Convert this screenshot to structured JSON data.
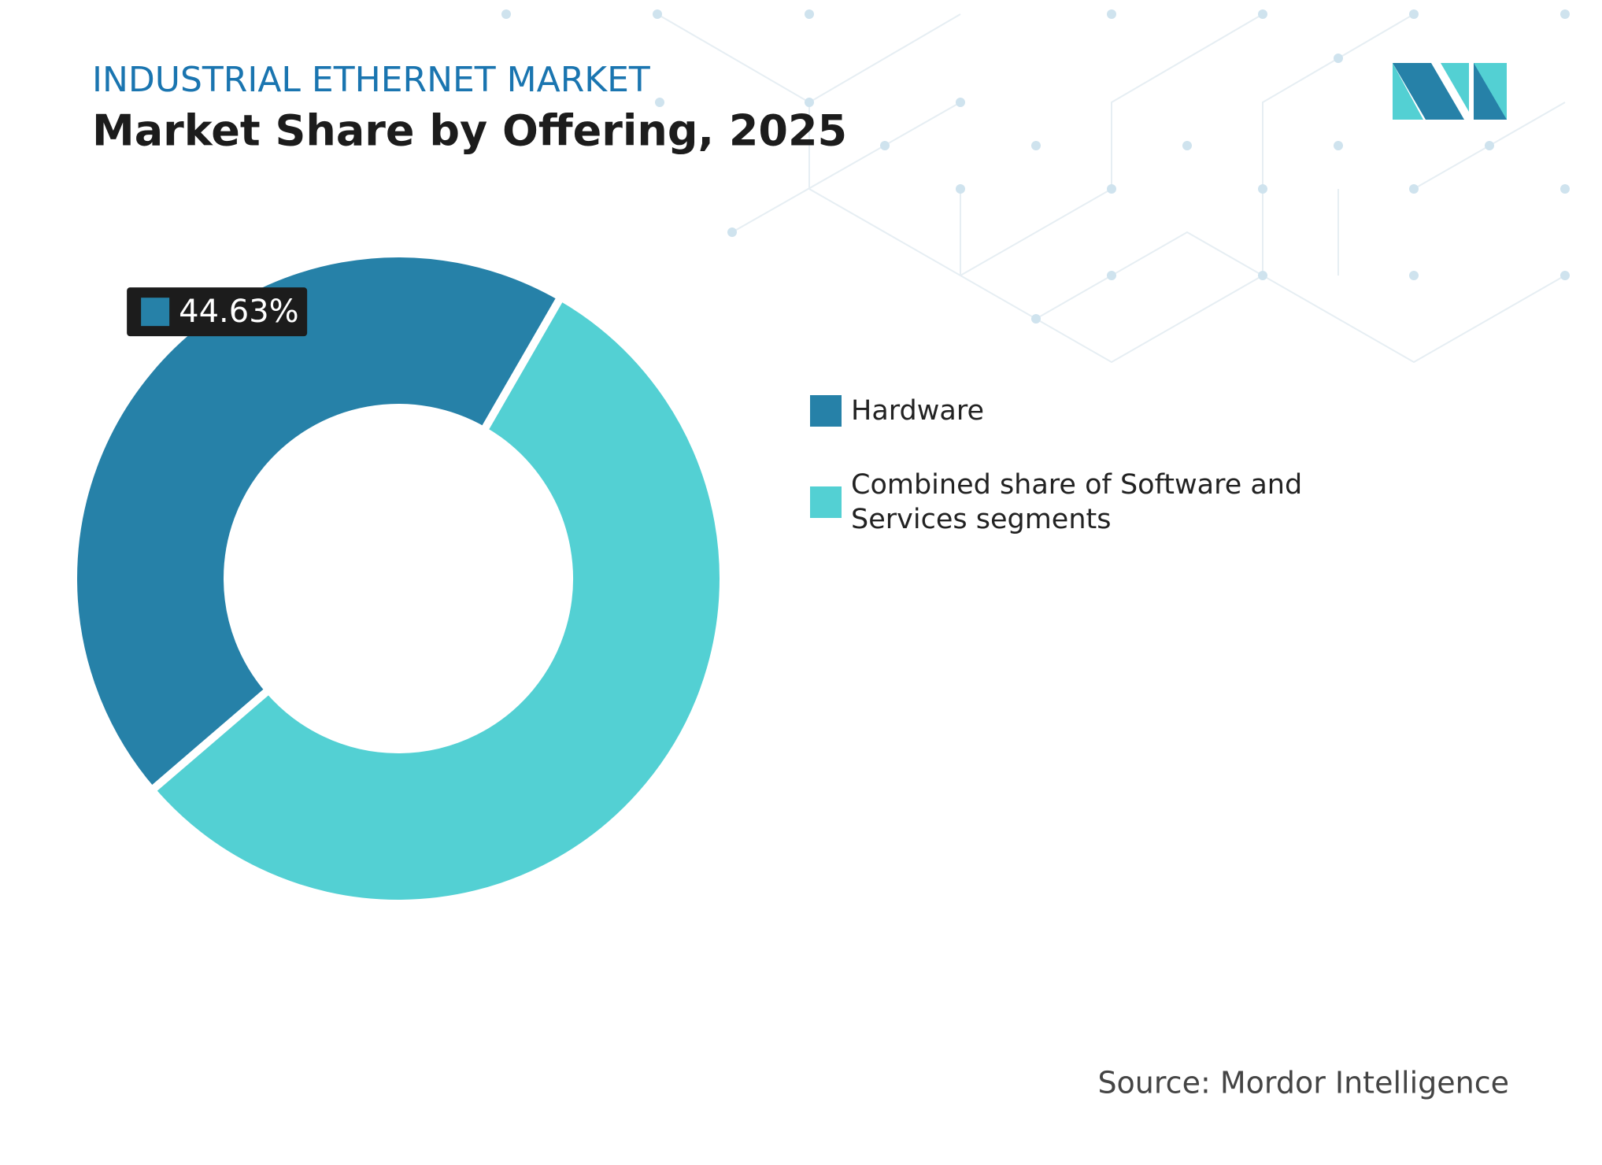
{
  "chart_data": {
    "type": "donut",
    "title": "INDUSTRIAL ETHERNET MARKET",
    "subtitle": "Market Share by Offering, 2025",
    "categories": [
      "Hardware",
      "Combined share of Software and Services segments"
    ],
    "values": [
      44.63,
      55.37
    ],
    "value_labels": [
      "44.63%",
      null
    ],
    "colors": [
      "#2681a8",
      "#53d0d3"
    ],
    "source": "Source: Mordor Intelligence"
  }
}
